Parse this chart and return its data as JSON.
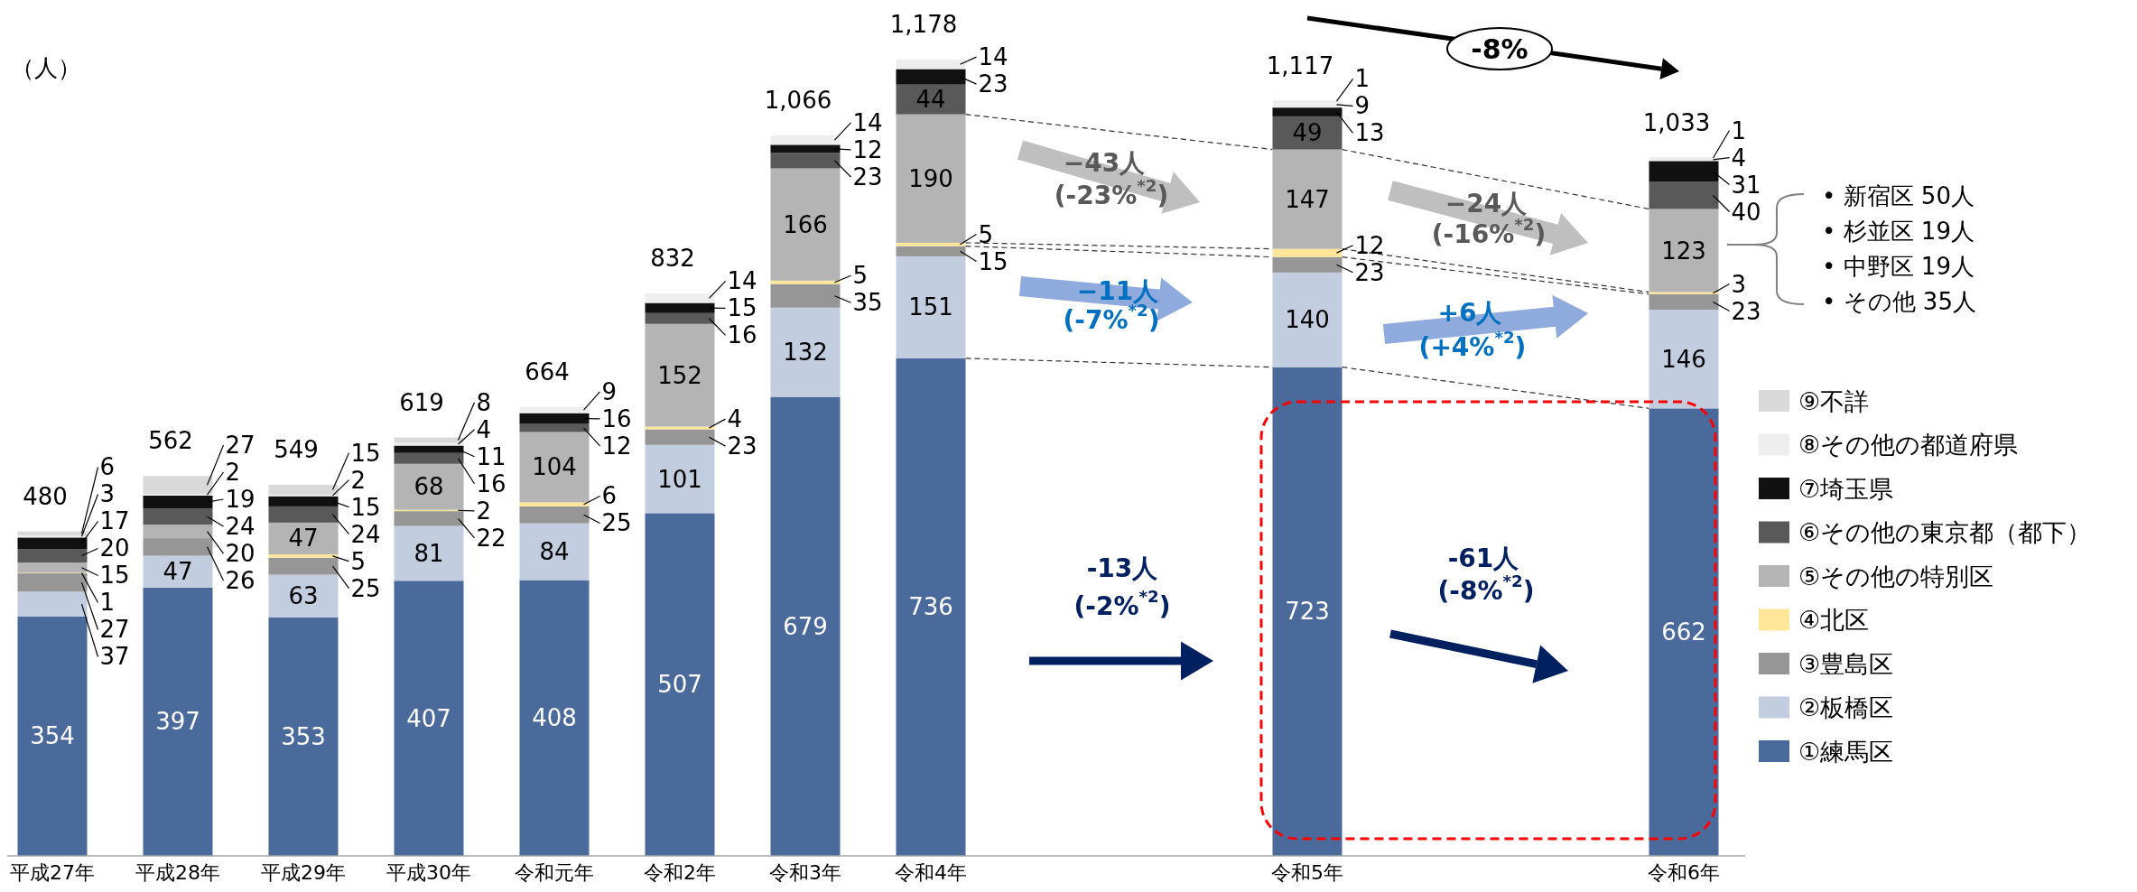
{
  "chart_data": {
    "type": "bar",
    "stacked": true,
    "data_labels": true,
    "legend": "right",
    "ylabel": "（人）",
    "categories": [
      "平成27年",
      "平成28年",
      "平成29年",
      "平成30年",
      "令和元年",
      "令和2年",
      "令和3年",
      "令和4年",
      null,
      null,
      "令和5年",
      null,
      null,
      "令和6年"
    ],
    "series": [
      {
        "name": "①練馬区",
        "color": "#4a6a9b",
        "values": [
          354,
          397,
          353,
          407,
          408,
          507,
          679,
          736,
          null,
          null,
          723,
          null,
          null,
          662
        ]
      },
      {
        "name": "②板橋区",
        "color": "#c3cde0",
        "values": [
          37,
          47,
          63,
          81,
          84,
          101,
          132,
          151,
          null,
          null,
          140,
          null,
          null,
          146
        ]
      },
      {
        "name": "③豊島区",
        "color": "#969696",
        "values": [
          27,
          26,
          25,
          22,
          25,
          23,
          35,
          15,
          null,
          null,
          23,
          null,
          null,
          23
        ]
      },
      {
        "name": "④北区",
        "color": "#ffe699",
        "values": [
          1,
          null,
          5,
          2,
          6,
          4,
          5,
          5,
          null,
          null,
          12,
          null,
          null,
          3
        ]
      },
      {
        "name": "⑤その他の特別区",
        "color": "#b4b4b4",
        "values": [
          15,
          20,
          47,
          68,
          104,
          152,
          166,
          190,
          null,
          null,
          147,
          null,
          null,
          123
        ]
      },
      {
        "name": "⑥その他の東京都（都下）",
        "color": "#595959",
        "values": [
          20,
          24,
          24,
          16,
          12,
          16,
          23,
          44,
          null,
          null,
          49,
          null,
          null,
          40
        ]
      },
      {
        "name": "⑦埼玉県",
        "color": "#111111",
        "values": [
          17,
          19,
          15,
          11,
          16,
          15,
          12,
          23,
          null,
          null,
          13,
          null,
          null,
          31
        ]
      },
      {
        "name": "⑧その他の都道府県",
        "color": "#eeeeee",
        "values": [
          3,
          2,
          2,
          4,
          9,
          14,
          14,
          14,
          null,
          null,
          9,
          null,
          null,
          4
        ]
      },
      {
        "name": "⑨不詳",
        "color": "#d9d9d9",
        "values": [
          6,
          27,
          15,
          8,
          null,
          null,
          null,
          null,
          null,
          null,
          1,
          null,
          null,
          1
        ]
      }
    ],
    "totals": [
      "480",
      "562",
      "549",
      "619",
      "664",
      "832",
      "1,066",
      "1,178",
      null,
      null,
      "1,117",
      null,
      null,
      "1,033"
    ],
    "annotations": [
      "-8%",
      "−43人",
      "(-23%$^{*2}$)",
      "−11人",
      "(-7%$^{*2}$)",
      "−24人",
      "(-16%$^{*2}$)",
      "+6人",
      "(+4%$^{*2}$)",
      "-13人",
      "(-2%$^{*2}$)",
      "-61人",
      "(-8%$^{*2}$)",
      "• 新宿区 50人",
      "• 杉並区 19人",
      "• 中野区 19人",
      "• その他 35人"
    ]
  }
}
